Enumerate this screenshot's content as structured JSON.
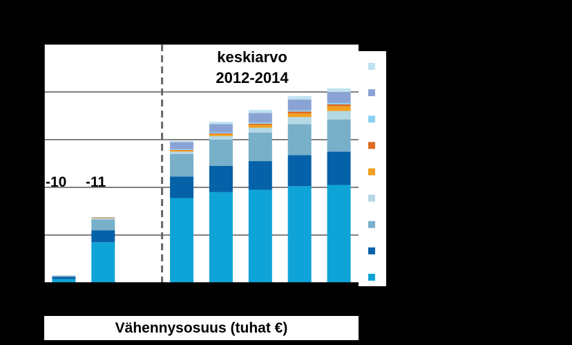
{
  "chart_data": {
    "type": "bar",
    "stacked": true,
    "xlabel": "Vähennysosuus (tuhat €)",
    "ylabel": "",
    "title": "",
    "ylim": [
      0,
      100
    ],
    "grid": true,
    "legend": "right",
    "categories": [
      "",
      "",
      "",
      "",
      "",
      "",
      "",
      ""
    ],
    "category_annotations": [
      "-10",
      "-11",
      "",
      "",
      "",
      "",
      "",
      ""
    ],
    "divider_after_index": 2,
    "group_annotation": [
      "keskiarvo",
      "2012-2014"
    ],
    "series": [
      {
        "color": "#0fa4d8",
        "values": [
          1.5,
          17,
          0,
          35.5,
          38,
          39,
          40.5,
          41
        ]
      },
      {
        "color": "#0561a8",
        "values": [
          1,
          5,
          0,
          9,
          11,
          12,
          13,
          14
        ]
      },
      {
        "color": "#78afc9",
        "values": [
          0.5,
          4.5,
          0,
          9.5,
          11,
          12,
          13,
          13.5
        ]
      },
      {
        "color": "#b4d8e4",
        "values": [
          0,
          0.5,
          0,
          1,
          1.5,
          2,
          3,
          3.5
        ]
      },
      {
        "color": "#f0a020",
        "values": [
          0,
          0.3,
          0,
          0.5,
          0.8,
          1.2,
          1.5,
          2
        ]
      },
      {
        "color": "#e06a20",
        "values": [
          0,
          0,
          0,
          0.2,
          0.3,
          0.5,
          0.8,
          0.8
        ]
      },
      {
        "color": "#8dd0f0",
        "values": [
          0,
          0,
          0,
          0.3,
          0.4,
          0.5,
          0.5,
          0.6
        ]
      },
      {
        "color": "#8aa3d4",
        "values": [
          0,
          0.2,
          0,
          3,
          3.5,
          4,
          4.5,
          4.5
        ]
      },
      {
        "color": "#bfe2f0",
        "values": [
          0,
          0,
          0,
          0.5,
          1,
          1.3,
          1.5,
          1.6
        ]
      }
    ]
  }
}
